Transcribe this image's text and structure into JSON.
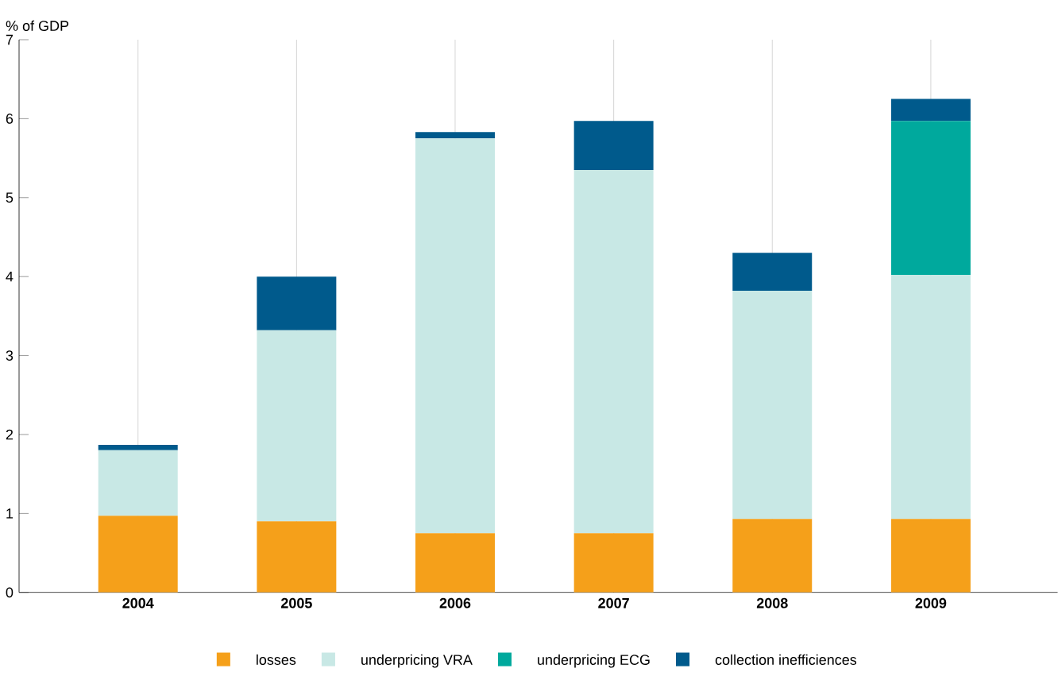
{
  "chart_data": {
    "type": "bar",
    "stacked": true,
    "ylabel": "% of GDP",
    "categories": [
      "2004",
      "2005",
      "2006",
      "2007",
      "2008",
      "2009"
    ],
    "series": [
      {
        "name": "losses",
        "color": "#f5a01a",
        "values": [
          0.97,
          0.9,
          0.75,
          0.75,
          0.93,
          0.93
        ]
      },
      {
        "name": "underpricing VRA",
        "color": "#c8e8e5",
        "values": [
          0.83,
          2.42,
          5.0,
          4.6,
          2.89,
          3.09
        ]
      },
      {
        "name": "underpricing ECG",
        "color": "#00a99d",
        "values": [
          0,
          0,
          0,
          0,
          0,
          1.95
        ]
      },
      {
        "name": "collection inefficiences",
        "color": "#005a8c",
        "values": [
          0.07,
          0.68,
          0.08,
          0.62,
          0.48,
          0.28
        ]
      }
    ],
    "ylim": [
      0,
      7
    ],
    "yticks": [
      0,
      1,
      2,
      3,
      4,
      5,
      6,
      7
    ],
    "grid": "x",
    "legend": "bottom"
  }
}
